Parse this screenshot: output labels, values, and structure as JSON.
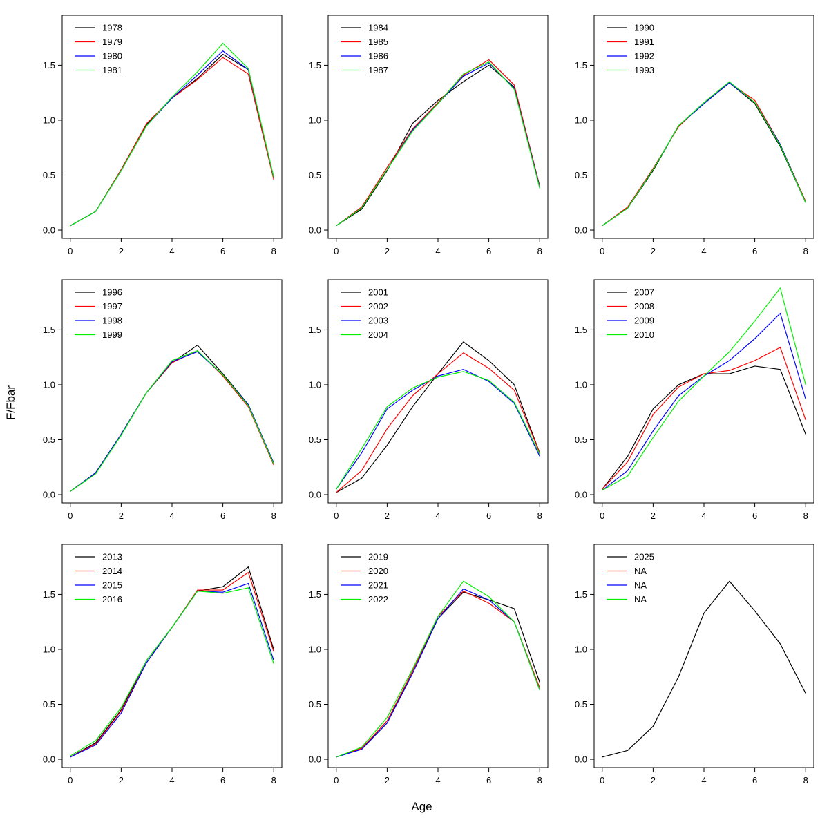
{
  "labels": {
    "xlabel": "Age",
    "ylabel": "F/Fbar"
  },
  "axes": {
    "x_range": [
      0,
      8
    ],
    "y_range": [
      0,
      1.88
    ],
    "x_ticks": [
      0,
      2,
      4,
      6,
      8
    ],
    "y_ticks": [
      0,
      0.5,
      1,
      1.5
    ],
    "grid": false,
    "legend_position": "top-left"
  },
  "colors": {
    "series_palette": [
      "#000000",
      "#FF0000",
      "#0000FF",
      "#00EE00"
    ],
    "axis": "#000000",
    "background": "#FFFFFF"
  },
  "chart_data": [
    {
      "type": "line",
      "x": [
        0,
        1,
        2,
        3,
        4,
        5,
        6,
        7,
        8
      ],
      "series": [
        {
          "name": "1978",
          "color": "#000000",
          "values": [
            0.04,
            0.17,
            0.55,
            0.96,
            1.2,
            1.38,
            1.6,
            1.46,
            0.47
          ]
        },
        {
          "name": "1979",
          "color": "#FF0000",
          "values": [
            0.04,
            0.17,
            0.55,
            0.97,
            1.2,
            1.37,
            1.57,
            1.42,
            0.46
          ]
        },
        {
          "name": "1980",
          "color": "#0000FF",
          "values": [
            0.04,
            0.17,
            0.54,
            0.95,
            1.2,
            1.41,
            1.63,
            1.46,
            0.48
          ]
        },
        {
          "name": "1981",
          "color": "#00EE00",
          "values": [
            0.04,
            0.17,
            0.54,
            0.95,
            1.21,
            1.44,
            1.7,
            1.47,
            0.48
          ]
        }
      ]
    },
    {
      "type": "line",
      "x": [
        0,
        1,
        2,
        3,
        4,
        5,
        6,
        7,
        8
      ],
      "series": [
        {
          "name": "1984",
          "color": "#000000",
          "values": [
            0.04,
            0.19,
            0.54,
            0.97,
            1.18,
            1.35,
            1.5,
            1.3,
            0.4
          ]
        },
        {
          "name": "1985",
          "color": "#FF0000",
          "values": [
            0.04,
            0.21,
            0.57,
            0.92,
            1.16,
            1.41,
            1.55,
            1.32,
            0.4
          ]
        },
        {
          "name": "1986",
          "color": "#0000FF",
          "values": [
            0.04,
            0.2,
            0.55,
            0.91,
            1.15,
            1.4,
            1.52,
            1.29,
            0.39
          ]
        },
        {
          "name": "1987",
          "color": "#00EE00",
          "values": [
            0.04,
            0.2,
            0.55,
            0.9,
            1.15,
            1.42,
            1.53,
            1.28,
            0.38
          ]
        }
      ]
    },
    {
      "type": "line",
      "x": [
        0,
        1,
        2,
        3,
        4,
        5,
        6,
        7,
        8
      ],
      "series": [
        {
          "name": "1990",
          "color": "#000000",
          "values": [
            0.04,
            0.2,
            0.54,
            0.95,
            1.15,
            1.34,
            1.15,
            0.76,
            0.25
          ]
        },
        {
          "name": "1991",
          "color": "#FF0000",
          "values": [
            0.04,
            0.21,
            0.56,
            0.94,
            1.16,
            1.34,
            1.18,
            0.78,
            0.26
          ]
        },
        {
          "name": "1992",
          "color": "#0000FF",
          "values": [
            0.04,
            0.2,
            0.55,
            0.95,
            1.15,
            1.34,
            1.16,
            0.78,
            0.25
          ]
        },
        {
          "name": "1993",
          "color": "#00EE00",
          "values": [
            0.04,
            0.2,
            0.55,
            0.95,
            1.16,
            1.35,
            1.16,
            0.77,
            0.25
          ]
        }
      ]
    },
    {
      "type": "line",
      "x": [
        0,
        1,
        2,
        3,
        4,
        5,
        6,
        7,
        8
      ],
      "series": [
        {
          "name": "1996",
          "color": "#000000",
          "values": [
            0.03,
            0.2,
            0.55,
            0.93,
            1.2,
            1.36,
            1.1,
            0.82,
            0.28
          ]
        },
        {
          "name": "1997",
          "color": "#FF0000",
          "values": [
            0.03,
            0.2,
            0.55,
            0.93,
            1.2,
            1.31,
            1.08,
            0.8,
            0.27
          ]
        },
        {
          "name": "1998",
          "color": "#0000FF",
          "values": [
            0.03,
            0.2,
            0.55,
            0.93,
            1.21,
            1.3,
            1.09,
            0.82,
            0.29
          ]
        },
        {
          "name": "1999",
          "color": "#00EE00",
          "values": [
            0.03,
            0.19,
            0.54,
            0.93,
            1.22,
            1.31,
            1.09,
            0.81,
            0.28
          ]
        }
      ]
    },
    {
      "type": "line",
      "x": [
        0,
        1,
        2,
        3,
        4,
        5,
        6,
        7,
        8
      ],
      "series": [
        {
          "name": "2001",
          "color": "#000000",
          "values": [
            0.02,
            0.15,
            0.45,
            0.8,
            1.1,
            1.39,
            1.22,
            1.0,
            0.38
          ]
        },
        {
          "name": "2002",
          "color": "#FF0000",
          "values": [
            0.02,
            0.22,
            0.6,
            0.9,
            1.1,
            1.29,
            1.15,
            0.95,
            0.38
          ]
        },
        {
          "name": "2003",
          "color": "#0000FF",
          "values": [
            0.05,
            0.38,
            0.78,
            0.95,
            1.08,
            1.14,
            1.03,
            0.83,
            0.35
          ]
        },
        {
          "name": "2004",
          "color": "#00EE00",
          "values": [
            0.05,
            0.42,
            0.8,
            0.97,
            1.07,
            1.12,
            1.04,
            0.84,
            0.37
          ]
        }
      ]
    },
    {
      "type": "line",
      "x": [
        0,
        1,
        2,
        3,
        4,
        5,
        6,
        7,
        8
      ],
      "series": [
        {
          "name": "2007",
          "color": "#000000",
          "values": [
            0.05,
            0.35,
            0.78,
            1.0,
            1.1,
            1.1,
            1.17,
            1.14,
            0.55
          ]
        },
        {
          "name": "2008",
          "color": "#FF0000",
          "values": [
            0.05,
            0.3,
            0.73,
            0.98,
            1.1,
            1.13,
            1.22,
            1.34,
            0.68
          ]
        },
        {
          "name": "2009",
          "color": "#0000FF",
          "values": [
            0.04,
            0.22,
            0.58,
            0.9,
            1.08,
            1.22,
            1.42,
            1.65,
            0.87
          ]
        },
        {
          "name": "2010",
          "color": "#00EE00",
          "values": [
            0.04,
            0.17,
            0.52,
            0.85,
            1.08,
            1.3,
            1.58,
            1.88,
            1.0
          ]
        }
      ]
    },
    {
      "type": "line",
      "x": [
        0,
        1,
        2,
        3,
        4,
        5,
        6,
        7,
        8
      ],
      "series": [
        {
          "name": "2013",
          "color": "#000000",
          "values": [
            0.02,
            0.15,
            0.45,
            0.9,
            1.2,
            1.53,
            1.57,
            1.75,
            1.0
          ]
        },
        {
          "name": "2014",
          "color": "#FF0000",
          "values": [
            0.02,
            0.14,
            0.44,
            0.88,
            1.2,
            1.54,
            1.54,
            1.7,
            0.98
          ]
        },
        {
          "name": "2015",
          "color": "#0000FF",
          "values": [
            0.02,
            0.13,
            0.42,
            0.88,
            1.2,
            1.53,
            1.52,
            1.6,
            0.9
          ]
        },
        {
          "name": "2016",
          "color": "#00EE00",
          "values": [
            0.03,
            0.17,
            0.47,
            0.9,
            1.2,
            1.53,
            1.51,
            1.56,
            0.87
          ]
        }
      ]
    },
    {
      "type": "line",
      "x": [
        0,
        1,
        2,
        3,
        4,
        5,
        6,
        7,
        8
      ],
      "series": [
        {
          "name": "2019",
          "color": "#000000",
          "values": [
            0.02,
            0.1,
            0.33,
            0.8,
            1.28,
            1.52,
            1.45,
            1.37,
            0.7
          ]
        },
        {
          "name": "2020",
          "color": "#FF0000",
          "values": [
            0.02,
            0.1,
            0.35,
            0.8,
            1.3,
            1.53,
            1.42,
            1.25,
            0.65
          ]
        },
        {
          "name": "2021",
          "color": "#0000FF",
          "values": [
            0.02,
            0.09,
            0.33,
            0.78,
            1.28,
            1.55,
            1.45,
            1.25,
            0.63
          ]
        },
        {
          "name": "2022",
          "color": "#00EE00",
          "values": [
            0.02,
            0.11,
            0.38,
            0.82,
            1.3,
            1.62,
            1.48,
            1.25,
            0.63
          ]
        }
      ]
    },
    {
      "type": "line",
      "x": [
        0,
        1,
        2,
        3,
        4,
        5,
        6,
        7,
        8
      ],
      "series": [
        {
          "name": "2025",
          "color": "#000000",
          "values": [
            0.02,
            0.08,
            0.3,
            0.75,
            1.33,
            1.62,
            1.35,
            1.05,
            0.6
          ]
        },
        {
          "name": "NA",
          "color": "#FF0000",
          "values": null
        },
        {
          "name": "NA",
          "color": "#0000FF",
          "values": null
        },
        {
          "name": "NA",
          "color": "#00EE00",
          "values": null
        }
      ]
    }
  ]
}
